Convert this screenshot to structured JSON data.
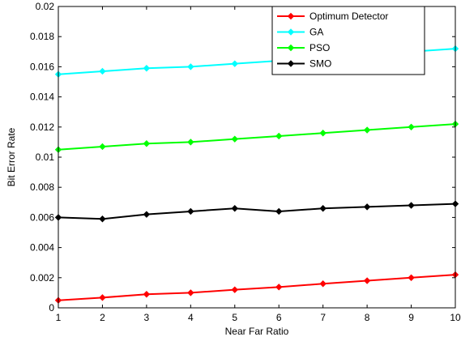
{
  "chart_data": {
    "type": "line",
    "title": "",
    "xlabel": "Near Far Ratio",
    "ylabel": "Bit Error Rate",
    "x": [
      1,
      2,
      3,
      4,
      5,
      6,
      7,
      8,
      9,
      10
    ],
    "xlim": [
      1,
      10
    ],
    "ylim": [
      0,
      0.02
    ],
    "xticks": [
      1,
      2,
      3,
      4,
      5,
      6,
      7,
      8,
      9,
      10
    ],
    "xtick_labels": [
      "1",
      "2",
      "3",
      "4",
      "5",
      "6",
      "7",
      "8",
      "9",
      "10"
    ],
    "yticks": [
      0,
      0.002,
      0.004,
      0.006,
      0.008,
      0.01,
      0.012,
      0.014,
      0.016,
      0.018,
      0.02
    ],
    "ytick_labels": [
      "0",
      "0.002",
      "0.004",
      "0.006",
      "0.008",
      "0.01",
      "0.012",
      "0.014",
      "0.016",
      "0.018",
      "0.02"
    ],
    "grid": false,
    "legend_position": "top-right",
    "series": [
      {
        "name": "Optimum Detector",
        "color": "#ff0000",
        "marker": "diamond",
        "values": [
          0.0005,
          0.00068,
          0.0009,
          0.001,
          0.0012,
          0.00138,
          0.0016,
          0.0018,
          0.002,
          0.0022
        ]
      },
      {
        "name": "GA",
        "color": "#00ffff",
        "marker": "diamond",
        "values": [
          0.0155,
          0.0157,
          0.0159,
          0.016,
          0.0162,
          0.0164,
          0.0166,
          0.0168,
          0.017,
          0.0172
        ]
      },
      {
        "name": "PSO",
        "color": "#00ff00",
        "marker": "diamond",
        "values": [
          0.0105,
          0.0107,
          0.0109,
          0.011,
          0.0112,
          0.0114,
          0.0116,
          0.0118,
          0.012,
          0.0122
        ]
      },
      {
        "name": "SMO",
        "color": "#000000",
        "marker": "diamond",
        "values": [
          0.006,
          0.0059,
          0.0062,
          0.0064,
          0.0066,
          0.0064,
          0.0066,
          0.0067,
          0.0068,
          0.0069
        ]
      }
    ]
  }
}
